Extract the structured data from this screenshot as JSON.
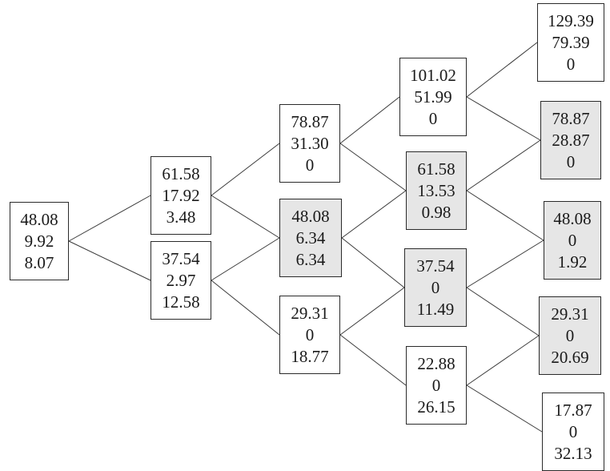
{
  "tree": {
    "nodes": [
      {
        "id": "n0_0",
        "shaded": false,
        "lines": [
          "48.08",
          "9.92",
          "8.07"
        ]
      },
      {
        "id": "n1_0",
        "shaded": false,
        "lines": [
          "61.58",
          "17.92",
          "3.48"
        ]
      },
      {
        "id": "n1_1",
        "shaded": false,
        "lines": [
          "37.54",
          "2.97",
          "12.58"
        ]
      },
      {
        "id": "n2_0",
        "shaded": false,
        "lines": [
          "78.87",
          "31.30",
          "0"
        ]
      },
      {
        "id": "n2_1",
        "shaded": true,
        "lines": [
          "48.08",
          "6.34",
          "6.34"
        ]
      },
      {
        "id": "n2_2",
        "shaded": false,
        "lines": [
          "29.31",
          "0",
          "18.77"
        ]
      },
      {
        "id": "n3_0",
        "shaded": false,
        "lines": [
          "101.02",
          "51.99",
          "0"
        ]
      },
      {
        "id": "n3_1",
        "shaded": true,
        "lines": [
          "61.58",
          "13.53",
          "0.98"
        ]
      },
      {
        "id": "n3_2",
        "shaded": true,
        "lines": [
          "37.54",
          "0",
          "11.49"
        ]
      },
      {
        "id": "n3_3",
        "shaded": false,
        "lines": [
          "22.88",
          "0",
          "26.15"
        ]
      },
      {
        "id": "n4_0",
        "shaded": false,
        "lines": [
          "129.39",
          "79.39",
          "0"
        ]
      },
      {
        "id": "n4_1",
        "shaded": true,
        "lines": [
          "78.87",
          "28.87",
          "0"
        ]
      },
      {
        "id": "n4_2",
        "shaded": true,
        "lines": [
          "48.08",
          "0",
          "1.92"
        ]
      },
      {
        "id": "n4_3",
        "shaded": true,
        "lines": [
          "29.31",
          "0",
          "20.69"
        ]
      },
      {
        "id": "n4_4",
        "shaded": false,
        "lines": [
          "17.87",
          "0",
          "32.13"
        ]
      }
    ],
    "edges": [
      [
        "n0_0",
        "n1_0"
      ],
      [
        "n0_0",
        "n1_1"
      ],
      [
        "n1_0",
        "n2_0"
      ],
      [
        "n1_0",
        "n2_1"
      ],
      [
        "n1_1",
        "n2_1"
      ],
      [
        "n1_1",
        "n2_2"
      ],
      [
        "n2_0",
        "n3_0"
      ],
      [
        "n2_0",
        "n3_1"
      ],
      [
        "n2_1",
        "n3_1"
      ],
      [
        "n2_1",
        "n3_2"
      ],
      [
        "n2_2",
        "n3_2"
      ],
      [
        "n2_2",
        "n3_3"
      ],
      [
        "n3_0",
        "n4_0"
      ],
      [
        "n3_0",
        "n4_1"
      ],
      [
        "n3_1",
        "n4_1"
      ],
      [
        "n3_1",
        "n4_2"
      ],
      [
        "n3_2",
        "n4_2"
      ],
      [
        "n3_2",
        "n4_3"
      ],
      [
        "n3_3",
        "n4_3"
      ],
      [
        "n3_3",
        "n4_4"
      ]
    ],
    "colors": {
      "shaded_fill": "#e6e6e6",
      "fill": "#ffffff",
      "border": "#2b2b2b",
      "edge": "#3a3a3a"
    }
  }
}
